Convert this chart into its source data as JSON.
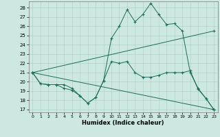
{
  "xlabel": "Humidex (Indice chaleur)",
  "ylabel": "",
  "xlim": [
    -0.5,
    23.5
  ],
  "ylim": [
    16.7,
    28.7
  ],
  "yticks": [
    17,
    18,
    19,
    20,
    21,
    22,
    23,
    24,
    25,
    26,
    27,
    28
  ],
  "xticks": [
    0,
    1,
    2,
    3,
    4,
    5,
    6,
    7,
    8,
    9,
    10,
    11,
    12,
    13,
    14,
    15,
    16,
    17,
    18,
    19,
    20,
    21,
    22,
    23
  ],
  "bg_color": "#cce8e0",
  "grid_color": "#aaccc4",
  "line_color": "#1a6b5a",
  "lines": [
    {
      "x": [
        0,
        1,
        2,
        3,
        4,
        5,
        6,
        7,
        8,
        9,
        10,
        11,
        12,
        13,
        14,
        15,
        16,
        17,
        18,
        19,
        20,
        21,
        22,
        23
      ],
      "y": [
        21,
        19.8,
        19.7,
        19.7,
        19.7,
        19.3,
        18.5,
        17.7,
        18.3,
        20.1,
        24.7,
        26.0,
        27.8,
        26.5,
        27.3,
        28.5,
        27.3,
        26.2,
        26.3,
        25.5,
        21.0,
        19.3,
        18.2,
        17.0
      ]
    },
    {
      "x": [
        0,
        1,
        2,
        3,
        4,
        5,
        6,
        7,
        8,
        9,
        10,
        11,
        12,
        13,
        14,
        15,
        16,
        17,
        18,
        19,
        20,
        21,
        22,
        23
      ],
      "y": [
        21,
        19.8,
        19.7,
        19.7,
        19.3,
        19.1,
        18.5,
        17.7,
        18.3,
        20.1,
        22.2,
        22.0,
        22.2,
        21.0,
        20.5,
        20.5,
        20.7,
        21.0,
        21.0,
        21.0,
        21.2,
        19.2,
        18.2,
        17.0
      ]
    },
    {
      "x": [
        0,
        23
      ],
      "y": [
        21,
        25.5
      ]
    },
    {
      "x": [
        0,
        23
      ],
      "y": [
        21,
        17.0
      ]
    }
  ],
  "figsize": [
    3.2,
    2.0
  ],
  "dpi": 100
}
